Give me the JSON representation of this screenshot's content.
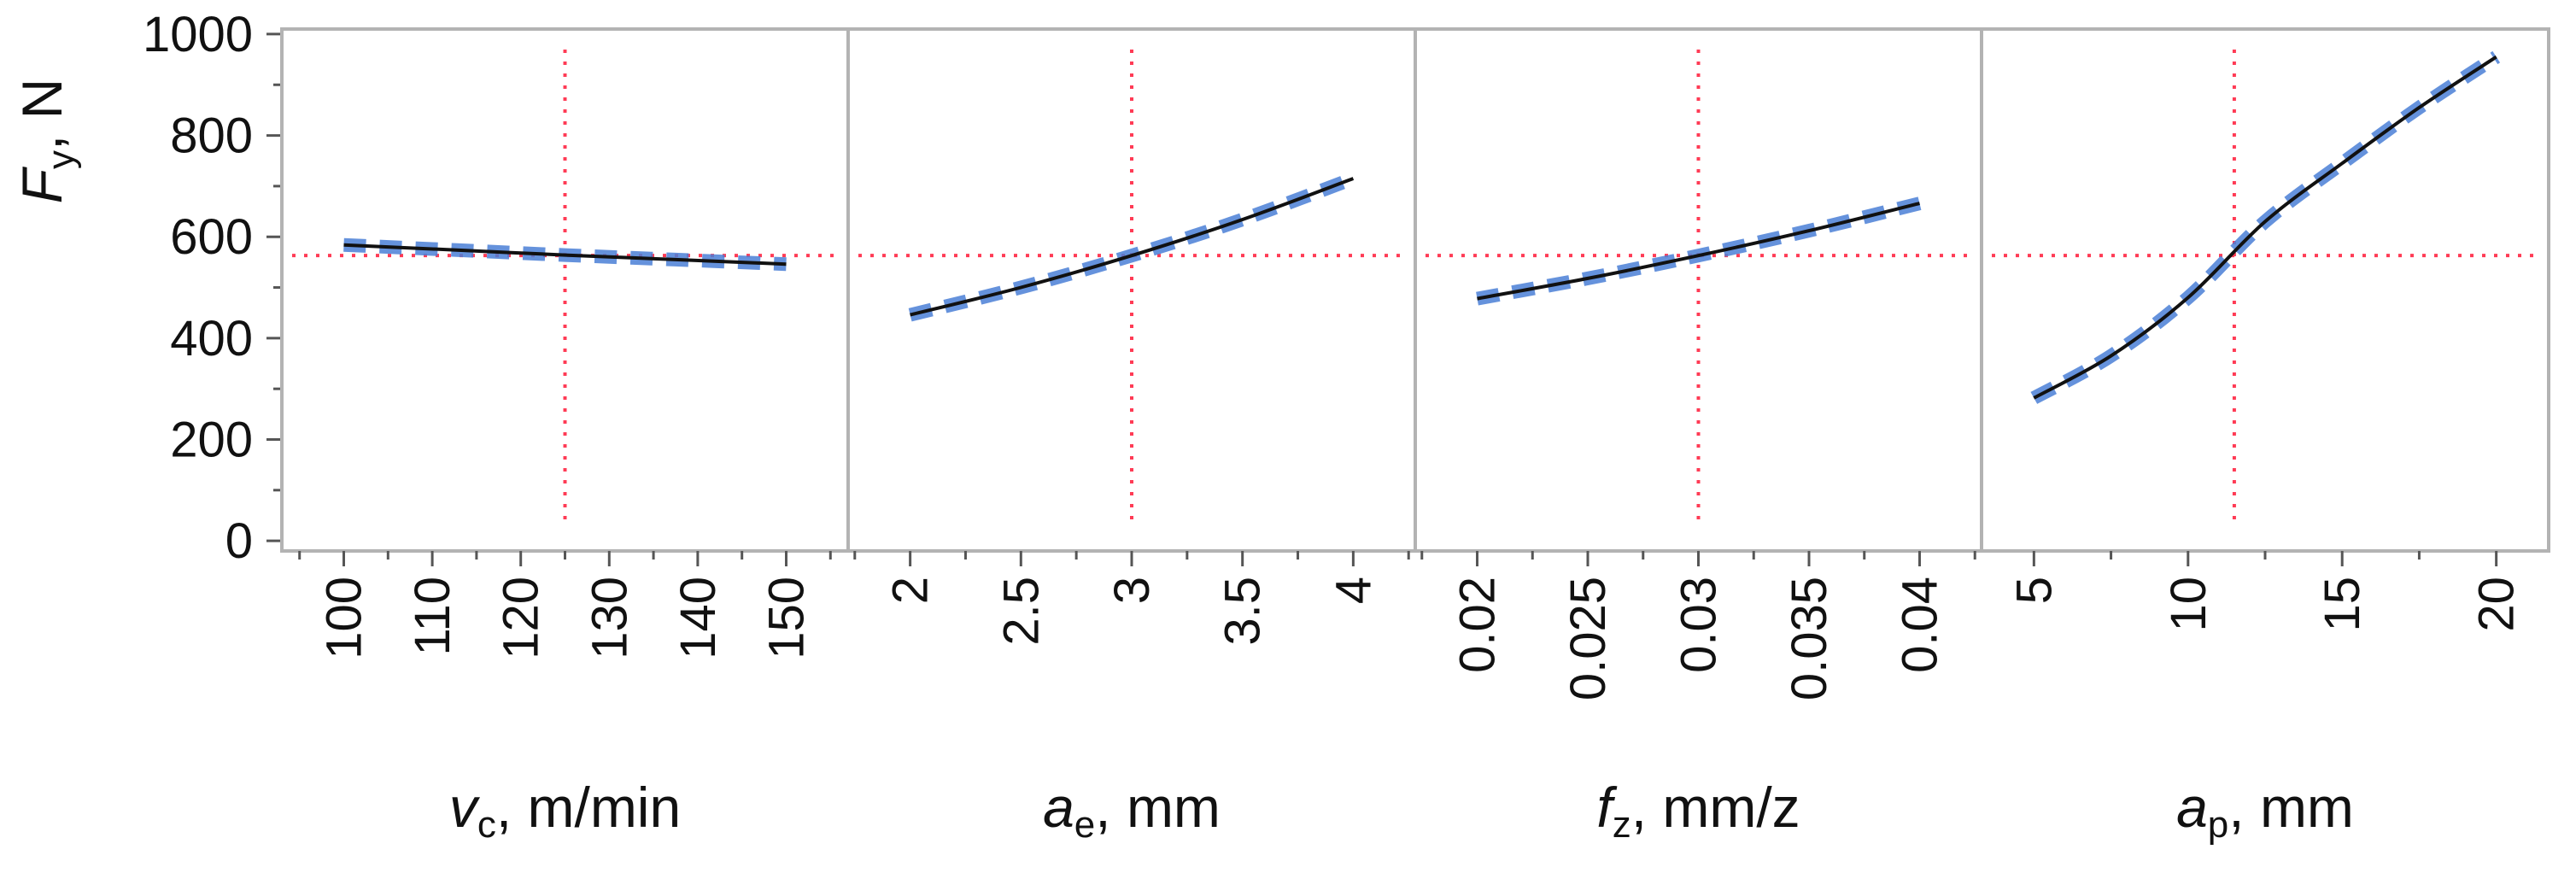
{
  "chart_data": {
    "type": "line",
    "y_axis": {
      "label_main": "F",
      "label_sub": "y",
      "label_rest": ", N",
      "ylim": [
        -20,
        1010
      ],
      "ticks": [
        0,
        200,
        400,
        600,
        800,
        1000
      ],
      "minor_ticks": [
        100,
        300,
        500,
        700,
        900
      ]
    },
    "reference": {
      "y": 563
    },
    "colors": {
      "fit": "#111111",
      "band": "#4a7fd6",
      "reference": "#ff3b55",
      "frame": "#b3b3b3"
    },
    "panels": [
      {
        "var_main": "v",
        "var_sub": "c",
        "unit": ", m/min",
        "xlim": [
          93,
          157
        ],
        "ticks": [
          100,
          110,
          120,
          130,
          140,
          150
        ],
        "tick_labels": [
          "100",
          "110",
          "120",
          "130",
          "140",
          "150"
        ],
        "ref_x": 125,
        "curve": [
          [
            100,
            584
          ],
          [
            112.5,
            574
          ],
          [
            125,
            564
          ],
          [
            137.5,
            555
          ],
          [
            150,
            546
          ]
        ]
      },
      {
        "var_main": "a",
        "var_sub": "e",
        "unit": ", mm",
        "xlim": [
          1.72,
          4.28
        ],
        "ticks": [
          2,
          2.5,
          3,
          3.5,
          4
        ],
        "tick_labels": [
          "2",
          "2.5",
          "3",
          "3.5",
          "4"
        ],
        "ref_x": 3,
        "curve": [
          [
            2,
            446
          ],
          [
            2.5,
            500
          ],
          [
            3,
            563
          ],
          [
            3.5,
            634
          ],
          [
            4,
            715
          ]
        ]
      },
      {
        "var_main": "f",
        "var_sub": "z",
        "unit": ", mm/z",
        "xlim": [
          0.0172,
          0.0428
        ],
        "ticks": [
          0.02,
          0.025,
          0.03,
          0.035,
          0.04
        ],
        "tick_labels": [
          "0.02",
          "0.025",
          "0.03",
          "0.035",
          "0.04"
        ],
        "ref_x": 0.03,
        "curve": [
          [
            0.02,
            478
          ],
          [
            0.025,
            518
          ],
          [
            0.03,
            563
          ],
          [
            0.035,
            612
          ],
          [
            0.04,
            666
          ]
        ]
      },
      {
        "var_main": "a",
        "var_sub": "p",
        "unit": ", mm",
        "xlim": [
          3.3,
          21.7
        ],
        "ticks": [
          5,
          10,
          15,
          20
        ],
        "tick_labels": [
          "5",
          "10",
          "15",
          "20"
        ],
        "ref_x": 11.5,
        "curve": [
          [
            5,
            282
          ],
          [
            7.5,
            365
          ],
          [
            10,
            480
          ],
          [
            12.5,
            630
          ],
          [
            15,
            745
          ],
          [
            17.5,
            855
          ],
          [
            20,
            955
          ]
        ]
      }
    ]
  }
}
